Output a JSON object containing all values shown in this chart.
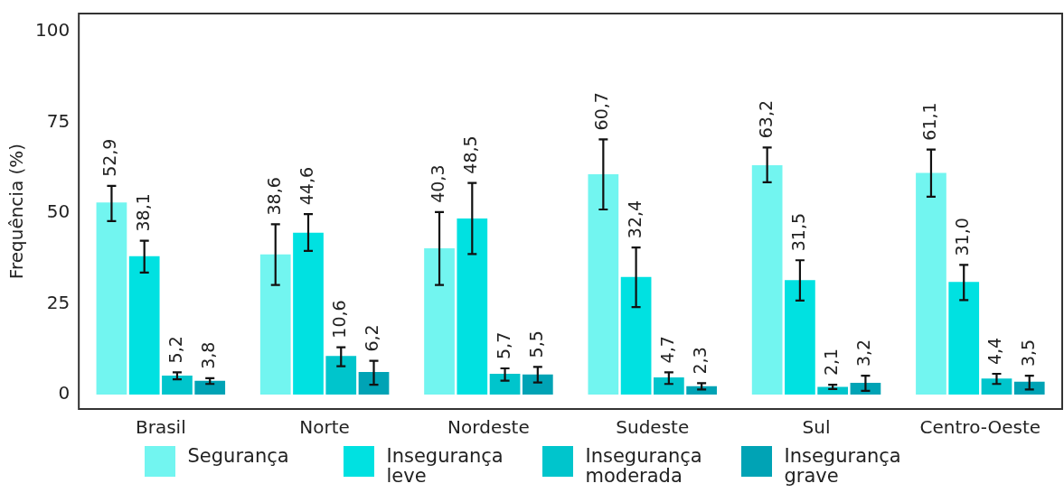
{
  "chart_data": {
    "type": "bar",
    "ylabel": "Frequência (%)",
    "categories": [
      "Brasil",
      "Norte",
      "Nordeste",
      "Sudeste",
      "Sul",
      "Centro-Oeste"
    ],
    "ylim": [
      -4,
      105
    ],
    "yticks": [
      0,
      25,
      50,
      75,
      100
    ],
    "grid": false,
    "legend": "bottom",
    "series": [
      {
        "name": "Segurança",
        "color": "#72f5f0",
        "values": [
          52.9,
          38.6,
          40.3,
          60.7,
          63.2,
          61.1
        ],
        "value_labels": [
          "52,9",
          "38,6",
          "40,3",
          "60,7",
          "63,2",
          "61,1"
        ],
        "errors": [
          [
            47.8,
            57.5
          ],
          [
            30.2,
            46.9
          ],
          [
            30.2,
            50.3
          ],
          [
            51.0,
            70.3
          ],
          [
            58.5,
            68.1
          ],
          [
            54.5,
            67.5
          ]
        ]
      },
      {
        "name": "Insegurança leve",
        "color": "#00e1e1",
        "values": [
          38.1,
          44.6,
          48.5,
          32.4,
          31.5,
          31.0
        ],
        "value_labels": [
          "38,1",
          "44,6",
          "48,5",
          "32,4",
          "31,5",
          "31,0"
        ],
        "errors": [
          [
            33.6,
            42.4
          ],
          [
            39.6,
            49.7
          ],
          [
            38.7,
            58.3
          ],
          [
            24.1,
            40.5
          ],
          [
            25.9,
            37.0
          ],
          [
            26.0,
            35.7
          ]
        ]
      },
      {
        "name": "Insegurança moderada",
        "color": "#00c5cc",
        "values": [
          5.2,
          10.6,
          5.7,
          4.7,
          2.1,
          4.4
        ],
        "value_labels": [
          "5,2",
          "10,6",
          "5,7",
          "4,7",
          "2,1",
          "4,4"
        ],
        "errors": [
          [
            4.2,
            6.1
          ],
          [
            7.8,
            13.0
          ],
          [
            3.8,
            7.2
          ],
          [
            2.9,
            6.1
          ],
          [
            1.5,
            2.7
          ],
          [
            2.9,
            5.7
          ]
        ]
      },
      {
        "name": "Insegurança grave",
        "color": "#00a3b5",
        "values": [
          3.8,
          6.2,
          5.5,
          2.3,
          3.2,
          3.5
        ],
        "value_labels": [
          "3,8",
          "6,2",
          "5,5",
          "2,3",
          "3,2",
          "3,5"
        ],
        "errors": [
          [
            2.9,
            4.5
          ],
          [
            2.7,
            9.3
          ],
          [
            3.3,
            7.6
          ],
          [
            1.4,
            3.1
          ],
          [
            1.0,
            5.2
          ],
          [
            1.4,
            5.2
          ]
        ]
      }
    ]
  }
}
